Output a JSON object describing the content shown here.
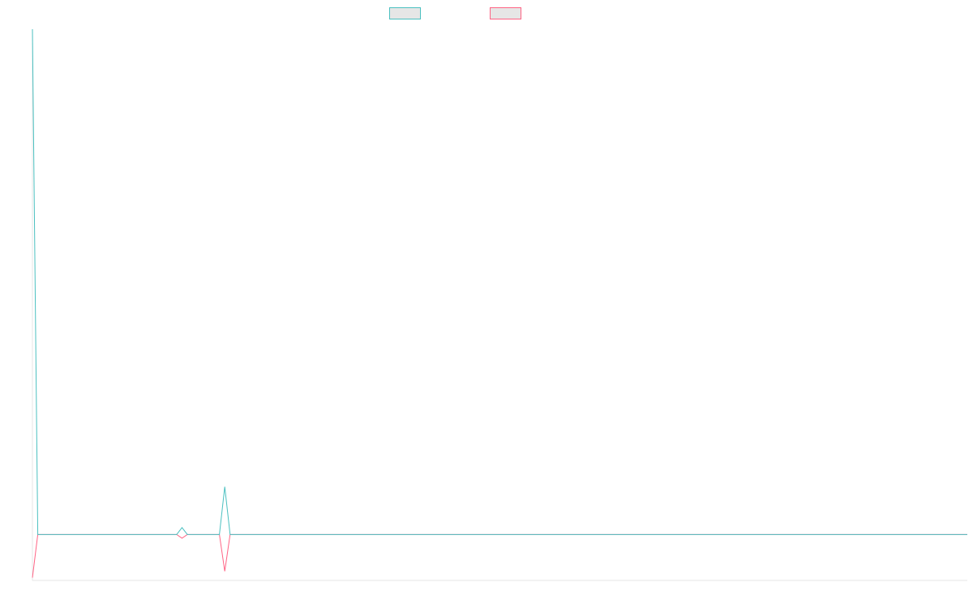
{
  "chart_data": {
    "type": "line",
    "title": "",
    "xlabel": "",
    "ylabel": "",
    "grid": false,
    "legend_position": "top",
    "x_count": 176,
    "ylim": [
      -100,
      1100
    ],
    "series": [
      {
        "name": "",
        "color": "#4bc0c0",
        "swatch_fill": "#e6e6e6",
        "values_sparse": {
          "0": 1100,
          "28": 15,
          "36": 104
        },
        "default": 0
      },
      {
        "name": "",
        "color": "#ff6384",
        "swatch_fill": "#e6e6e6",
        "values_sparse": {
          "0": -94,
          "28": -8,
          "36": -80
        },
        "default": 0
      }
    ]
  }
}
